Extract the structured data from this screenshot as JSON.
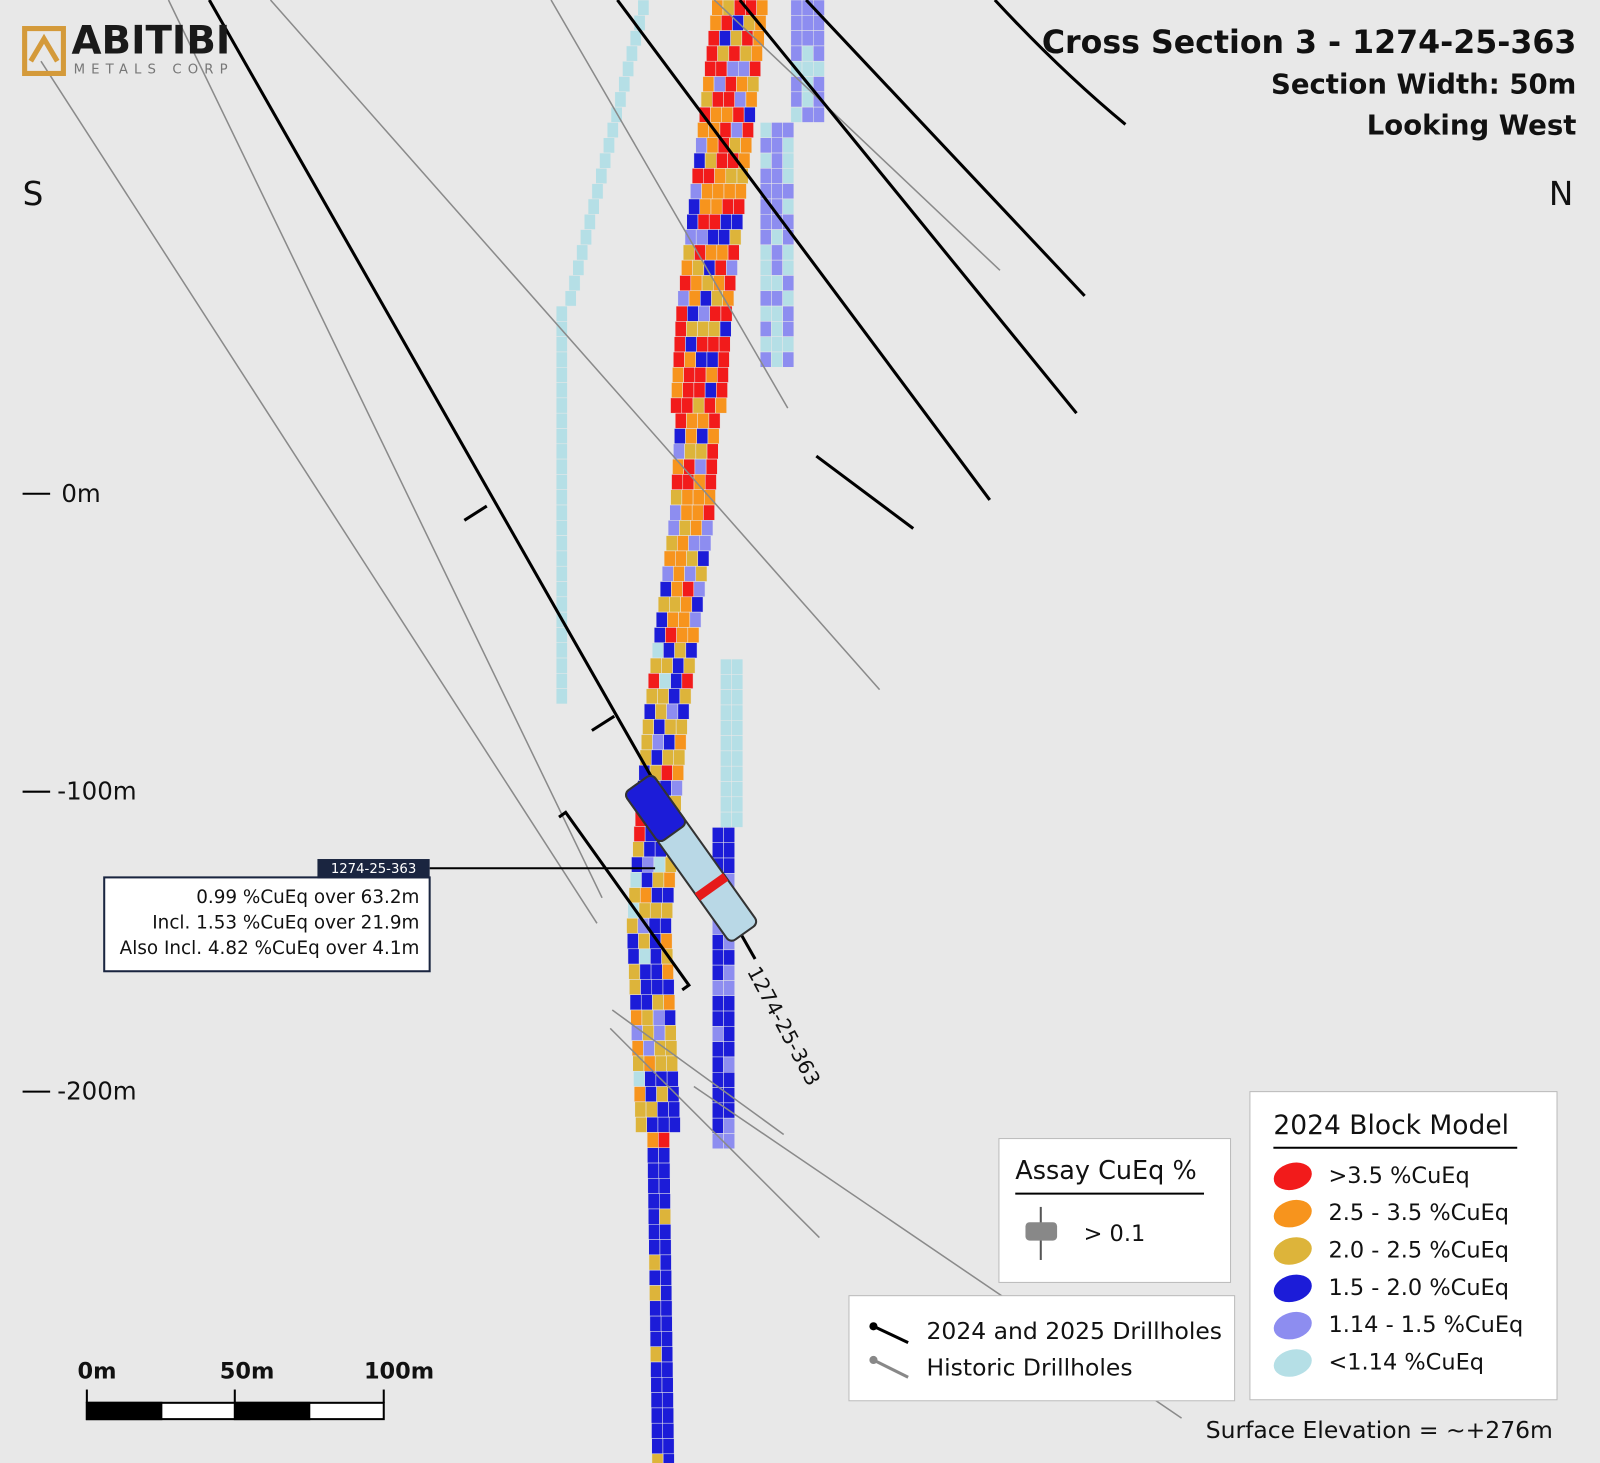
{
  "header": {
    "logo_name": "ABITIBI",
    "logo_sub": "METALS CORP",
    "title": "Cross Section 3 - 1274-25-363",
    "section_width": "Section Width: 50m",
    "view": "Looking West"
  },
  "orientation": {
    "left": "S",
    "right": "N"
  },
  "elevation_labels": [
    "0m",
    "-100m",
    "-200m"
  ],
  "scale_bar": {
    "labels": [
      "0m",
      "50m",
      "100m"
    ]
  },
  "drillhole": {
    "label": "1274-25-363",
    "tag": "1274-25-363",
    "intercepts": [
      "0.99 %CuEq over 63.2m",
      "Incl. 1.53 %CuEq over 21.9m",
      "Also Incl. 4.82 %CuEq over 4.1m"
    ]
  },
  "assay_legend": {
    "title": "Assay CuEq %",
    "item": "> 0.1"
  },
  "drillhole_legend": {
    "items": [
      "2024 and 2025 Drillholes",
      "Historic Drillholes"
    ]
  },
  "block_legend": {
    "title": "2024 Block Model",
    "items": [
      ">3.5 %CuEq",
      "2.5 - 3.5 %CuEq",
      "2.0 - 2.5 %CuEq",
      "1.5 - 2.0 %CuEq",
      "1.14 - 1.5 %CuEq",
      "<1.14 %CuEq"
    ]
  },
  "footer": {
    "surface_elevation": "Surface Elevation = ~+276m"
  }
}
